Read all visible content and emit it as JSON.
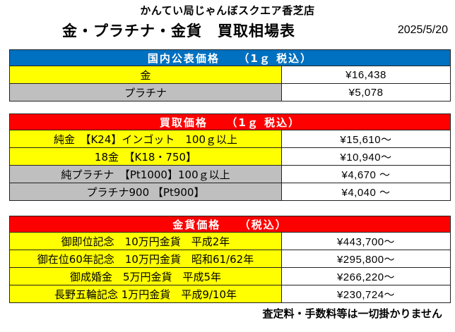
{
  "header": {
    "store_name": "かんてい局じゃんぼスクエア香芝店",
    "title": "金・プラチナ・金貨　買取相場表",
    "date": "2025/5/20"
  },
  "public_prices": {
    "heading": "国内公表価格　　（1ｇ 税込）",
    "rows": [
      {
        "name": "金",
        "price": "¥16,438",
        "color": "#ffff00"
      },
      {
        "name": "プラチナ",
        "price": "¥5,078",
        "color": "#bfbfbf"
      }
    ]
  },
  "buy_prices": {
    "heading": "買取価格　　（1ｇ 税込）",
    "rows": [
      {
        "name": "純金　【K24】インゴット　100ｇ以上",
        "price": "¥15,610～",
        "color": "#ffff00"
      },
      {
        "name": "18金　【K18・750】",
        "price": "¥10,940～",
        "color": "#ffff00"
      },
      {
        "name": "純プラチナ　【Pt1000】100ｇ以上",
        "price": "¥4,670 ～",
        "color": "#bfbfbf"
      },
      {
        "name": "プラチナ900 【Pt900】",
        "price": "¥4,040 ～",
        "color": "#bfbfbf"
      }
    ]
  },
  "coin_prices": {
    "heading": "金貨価格　　（税込）",
    "rows": [
      {
        "name": "御即位記念　10万円金貨　平成2年",
        "price": "¥443,700～",
        "color": "#ffff00"
      },
      {
        "name": "御在位60年記念　10万円金貨　昭和61/62年",
        "price": "¥295,800～",
        "color": "#ffff00"
      },
      {
        "name": "御成婚金　5万円金貨　平成5年",
        "price": "¥266,220～",
        "color": "#ffff00"
      },
      {
        "name": "長野五輪記念 1万円金貨　平成9/10年",
        "price": "¥230,724～",
        "color": "#ffff00"
      }
    ]
  },
  "footer": {
    "note": "査定料・手数料等は一切掛かりません"
  },
  "colors": {
    "header_blue": "#0070c0",
    "header_red": "#ff0000",
    "gold_yellow": "#ffff00",
    "platinum_gray": "#bfbfbf"
  }
}
